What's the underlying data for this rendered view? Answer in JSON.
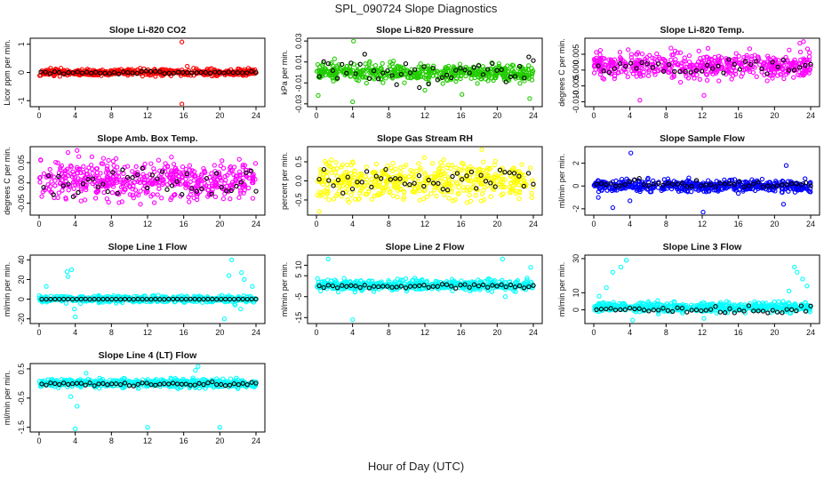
{
  "figure": {
    "title": "SPL_090724  Slope Diagnostics",
    "xlabel": "Hour of Day (UTC)"
  },
  "colors": {
    "red": "#ff0000",
    "green": "#22cc00",
    "magenta": "#ff00ff",
    "yellow": "#ffff00",
    "blue": "#0000ff",
    "cyan": "#00ffff",
    "black": "#000000"
  },
  "chart_data": [
    {
      "type": "scatter",
      "title": "Slope Li-820 CO2",
      "ylabel": "Licor ppm per min.",
      "color": "red",
      "xlim": [
        0,
        24
      ],
      "ylim": [
        -1.15,
        1.15
      ],
      "yticks": [
        "-1",
        "0",
        "1"
      ],
      "ytick_values": [
        -1,
        0,
        1
      ],
      "xticks": [
        "0",
        "4",
        "8",
        "12",
        "16",
        "20",
        "24"
      ],
      "bands": [
        {
          "x": [
            0,
            24
          ],
          "center": 0.0,
          "spread": 0.1
        }
      ],
      "outliers": [
        [
          15.8,
          1.08
        ],
        [
          15.8,
          -1.12
        ],
        [
          16.4,
          0.22
        ],
        [
          17.1,
          0.15
        ],
        [
          18.6,
          0.12
        ]
      ],
      "black_series": {
        "x_start": 0.2,
        "x_end": 24,
        "count": 48,
        "center": 0.0,
        "spread": 0.04
      }
    },
    {
      "type": "scatter",
      "title": "Slope Li-820 Pressure",
      "ylabel": "kPa per min.",
      "color": "green",
      "xlim": [
        0,
        24
      ],
      "ylim": [
        -0.031,
        0.031
      ],
      "yticks": [
        "-0.03",
        "-0.01",
        "0.01",
        "0.03"
      ],
      "ytick_values": [
        -0.03,
        -0.01,
        0.01,
        0.03
      ],
      "xticks": [
        "0",
        "4",
        "8",
        "12",
        "16",
        "20",
        "24"
      ],
      "bands": [
        {
          "x": [
            0,
            24
          ],
          "center": 0.0,
          "spread": 0.007
        }
      ],
      "outliers": [
        [
          4.1,
          0.03
        ],
        [
          0.2,
          -0.022
        ],
        [
          4.0,
          -0.028
        ],
        [
          16.1,
          -0.021
        ],
        [
          23.6,
          -0.025
        ],
        [
          2.0,
          0.013
        ],
        [
          12.0,
          -0.017
        ]
      ],
      "black_series": {
        "x_start": 0.3,
        "x_end": 24,
        "count": 48,
        "center": 0.0,
        "spread": 0.011
      }
    },
    {
      "type": "scatter",
      "title": "Slope Li-820 Temp.",
      "ylabel": "degrees C per min.",
      "color": "magenta",
      "xlim": [
        0,
        24
      ],
      "ylim": [
        -0.011,
        0.0095
      ],
      "yticks": [
        "-0.010",
        "-0.005",
        "0.000",
        "0.005"
      ],
      "ytick_values": [
        -0.01,
        -0.005,
        0,
        0.005
      ],
      "xticks": [
        "0",
        "4",
        "8",
        "12",
        "16",
        "20",
        "24"
      ],
      "bands": [
        {
          "x": [
            0,
            24
          ],
          "center": 0.0015,
          "spread": 0.0035
        }
      ],
      "outliers": [
        [
          23.2,
          0.009
        ],
        [
          5.1,
          -0.0095
        ],
        [
          12.2,
          -0.008
        ],
        [
          22.8,
          0.0085
        ]
      ],
      "black_series": {
        "x_start": 0.5,
        "x_end": 24,
        "count": 40,
        "center": 0.001,
        "spread": 0.0025
      }
    },
    {
      "type": "scatter",
      "title": "Slope Amb. Box Temp.",
      "ylabel": "degrees C per min.",
      "color": "magenta",
      "xlim": [
        0,
        24
      ],
      "ylim": [
        -0.075,
        0.085
      ],
      "yticks": [
        "-0.05",
        "0.00",
        "0.05"
      ],
      "ytick_values": [
        -0.05,
        0,
        0.05
      ],
      "xticks": [
        "0",
        "4",
        "8",
        "12",
        "16",
        "20",
        "24"
      ],
      "bands": [
        {
          "x": [
            0,
            24
          ],
          "center": 0.005,
          "spread": 0.045
        }
      ],
      "outliers": [
        [
          4.2,
          0.08
        ],
        [
          3.2,
          0.075
        ]
      ],
      "black_series": {
        "x_start": 0.5,
        "x_end": 24,
        "count": 44,
        "center": 0.0,
        "spread": 0.03
      }
    },
    {
      "type": "scatter",
      "title": "Slope Gas Stream RH",
      "ylabel": "percent per min.",
      "color": "yellow",
      "xlim": [
        0,
        24
      ],
      "ylim": [
        -0.85,
        0.85
      ],
      "yticks": [
        "-0.5",
        "0.0",
        "0.5"
      ],
      "ytick_values": [
        -0.5,
        0,
        0.5
      ],
      "xticks": [
        "0",
        "4",
        "8",
        "12",
        "16",
        "20",
        "24"
      ],
      "bands": [
        {
          "x": [
            0,
            24
          ],
          "center": 0.0,
          "spread": 0.4
        }
      ],
      "outliers": [
        [
          0.3,
          -0.8
        ],
        [
          18.3,
          0.82
        ]
      ],
      "black_series": {
        "x_start": 0.3,
        "x_end": 24,
        "count": 46,
        "center": 0.0,
        "spread": 0.3
      }
    },
    {
      "type": "scatter",
      "title": "Slope Sample Flow",
      "ylabel": "ml/min per min.",
      "color": "blue",
      "xlim": [
        0,
        24
      ],
      "ylim": [
        -2.4,
        3.3
      ],
      "yticks": [
        "-2",
        "0",
        "2"
      ],
      "ytick_values": [
        -2,
        0,
        2
      ],
      "xticks": [
        "0",
        "4",
        "8",
        "12",
        "16",
        "20",
        "24"
      ],
      "bands": [
        {
          "x": [
            0,
            24
          ],
          "center": 0.0,
          "spread": 0.45
        }
      ],
      "outliers": [
        [
          4.1,
          2.9
        ],
        [
          12.1,
          -2.3
        ],
        [
          21.3,
          1.8
        ],
        [
          2.1,
          -1.9
        ],
        [
          4.0,
          -1.3
        ],
        [
          21.0,
          -1.6
        ],
        [
          0.5,
          -1.0
        ]
      ],
      "black_series": {
        "x_start": 0.3,
        "x_end": 24,
        "count": 46,
        "center": 0.2,
        "spread": 0.3
      }
    },
    {
      "type": "scatter",
      "title": "Slope Line 1 Flow",
      "ylabel": "ml/min per min.",
      "color": "cyan",
      "xlim": [
        0,
        24
      ],
      "ylim": [
        -23,
        43
      ],
      "yticks": [
        "-20",
        "0",
        "20",
        "40"
      ],
      "ytick_values": [
        -20,
        0,
        20,
        40
      ],
      "xticks": [
        "0",
        "4",
        "8",
        "12",
        "16",
        "20",
        "24"
      ],
      "bands": [
        {
          "x": [
            0,
            24
          ],
          "center": 0.0,
          "spread": 3
        }
      ],
      "outliers": [
        [
          3.1,
          28
        ],
        [
          3.6,
          30
        ],
        [
          3.2,
          23
        ],
        [
          0.8,
          13
        ],
        [
          3.9,
          -10
        ],
        [
          4.0,
          -18
        ],
        [
          20.5,
          -20
        ],
        [
          21.3,
          40
        ],
        [
          21.0,
          24
        ],
        [
          22.4,
          27
        ],
        [
          22.7,
          20
        ],
        [
          21.7,
          -6
        ],
        [
          22.3,
          -10
        ],
        [
          23.6,
          13
        ]
      ],
      "black_series": {
        "x_start": 0.3,
        "x_end": 24,
        "count": 50,
        "center": 0.0,
        "spread": 0.15
      }
    },
    {
      "type": "scatter",
      "title": "Slope Line 2 Flow",
      "ylabel": "ml/min per min.",
      "color": "cyan",
      "xlim": [
        0,
        24
      ],
      "ylim": [
        -17,
        14
      ],
      "yticks": [
        "-15",
        "-5",
        "5",
        "10"
      ],
      "ytick_values": [
        -15,
        -5,
        5,
        10
      ],
      "xticks": [
        "0",
        "4",
        "8",
        "12",
        "16",
        "20",
        "24"
      ],
      "bands": [
        {
          "x": [
            0,
            24
          ],
          "center": 0.5,
          "spread": 2.2
        }
      ],
      "outliers": [
        [
          1.3,
          13
        ],
        [
          4.0,
          -16
        ],
        [
          20.6,
          13
        ],
        [
          20.9,
          -5
        ],
        [
          23.7,
          9
        ]
      ],
      "black_series": {
        "x_start": 0.3,
        "x_end": 24,
        "count": 48,
        "center": 0.0,
        "spread": 1.0
      }
    },
    {
      "type": "scatter",
      "title": "Slope Line 3 Flow",
      "ylabel": "ml/min per min.",
      "color": "cyan",
      "xlim": [
        0,
        24
      ],
      "ylim": [
        -7,
        31
      ],
      "yticks": [
        "0",
        "10",
        "30"
      ],
      "ytick_values": [
        0,
        10,
        30
      ],
      "xticks": [
        "0",
        "4",
        "8",
        "12",
        "16",
        "20",
        "24"
      ],
      "bands": [
        {
          "x": [
            0,
            24
          ],
          "center": 1.5,
          "spread": 2.5
        }
      ],
      "outliers": [
        [
          2.1,
          22
        ],
        [
          3.0,
          25
        ],
        [
          3.6,
          29
        ],
        [
          1.4,
          13
        ],
        [
          0.6,
          8
        ],
        [
          22.2,
          25
        ],
        [
          22.5,
          22
        ],
        [
          23.1,
          18
        ],
        [
          23.6,
          14
        ],
        [
          21.6,
          11
        ],
        [
          4.3,
          -6
        ],
        [
          12.2,
          -5
        ]
      ],
      "black_series": {
        "x_start": 0.3,
        "x_end": 24,
        "count": 46,
        "center": 0.0,
        "spread": 1.6
      }
    },
    {
      "type": "scatter",
      "title": "Slope Line 4 (LT) Flow",
      "ylabel": "ml/min per min.",
      "color": "cyan",
      "xlim": [
        0,
        24
      ],
      "ylim": [
        -1.6,
        0.62
      ],
      "yticks": [
        "-1.5",
        "-0.5",
        "0.5"
      ],
      "ytick_values": [
        -1.5,
        -0.5,
        0.5
      ],
      "xticks": [
        "0",
        "4",
        "8",
        "12",
        "16",
        "20",
        "24"
      ],
      "bands": [
        {
          "x": [
            0,
            24
          ],
          "center": 0.0,
          "spread": 0.13
        }
      ],
      "outliers": [
        [
          4.0,
          -1.55
        ],
        [
          12.0,
          -1.5
        ],
        [
          20.0,
          -1.5
        ],
        [
          17.6,
          0.58
        ],
        [
          4.2,
          -0.78
        ],
        [
          5.2,
          0.35
        ],
        [
          3.5,
          -0.45
        ],
        [
          17.3,
          0.45
        ]
      ],
      "black_series": {
        "x_start": 0.3,
        "x_end": 24,
        "count": 50,
        "center": -0.02,
        "spread": 0.05
      }
    }
  ]
}
